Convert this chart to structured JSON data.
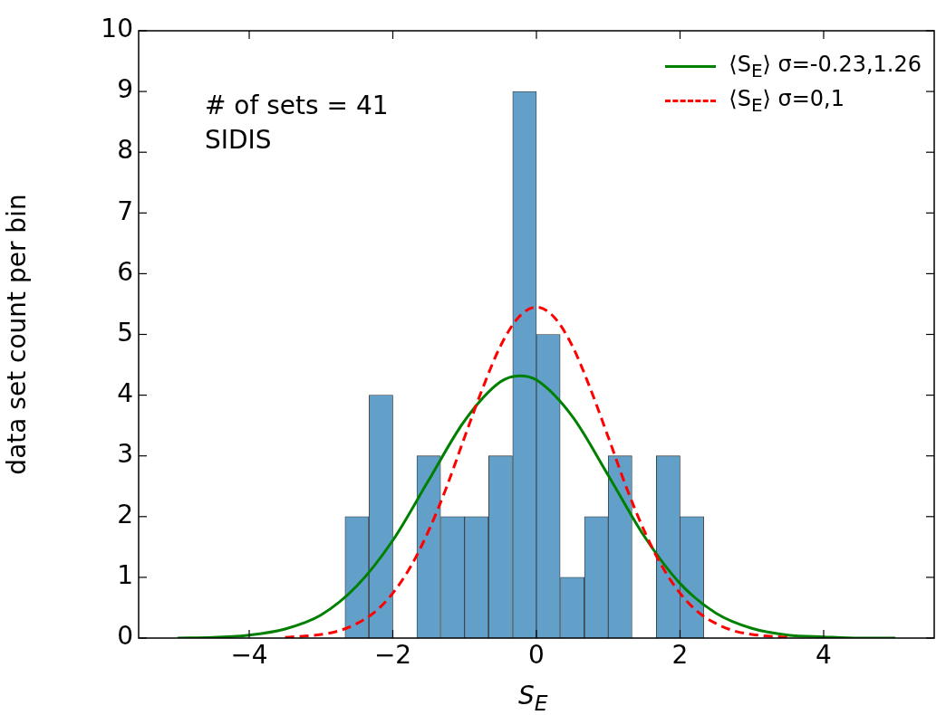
{
  "chart_data": {
    "type": "histogram",
    "xlabel": "S$_{E}$",
    "ylabel": "data set count per bin",
    "bins": [
      -2.67,
      -2.33,
      -2,
      -1.67,
      -1.33,
      -1,
      -0.67,
      -0.33,
      0,
      0.33,
      0.67,
      1,
      1.33,
      1.67,
      2,
      2.33
    ],
    "values": [
      2,
      4,
      0,
      3,
      2,
      2,
      3,
      9,
      5,
      1,
      2,
      3,
      0,
      3,
      2
    ],
    "color": "#62a0ca",
    "series": [
      {
        "type": "line",
        "name": "⟨S$_{E}$⟩ σ=-0.23,1.26",
        "color": "#008000",
        "line_style": "solid",
        "x": [
          -5,
          -4.5,
          -4,
          -3.5,
          -3,
          -2.5,
          -2,
          -1.5,
          -1,
          -0.5,
          -0.23,
          0,
          0.5,
          1,
          1.5,
          2,
          2.5,
          3,
          3.5,
          4,
          4.5,
          5
        ],
        "values": [
          0,
          0.01,
          0.05,
          0.15,
          0.38,
          0.86,
          1.61,
          2.6,
          3.58,
          4.22,
          4.32,
          4.25,
          3.65,
          2.68,
          1.68,
          0.9,
          0.41,
          0.16,
          0.05,
          0.02,
          0,
          0
        ]
      },
      {
        "type": "line",
        "name": "⟨S$_{E}$⟩ σ=0,1",
        "color": "#ff0000",
        "line_style": "dashed",
        "x": [
          -3.5,
          -3,
          -2.75,
          -2.5,
          -2.25,
          -2,
          -1.75,
          -1.5,
          -1.25,
          -1,
          -0.75,
          -0.5,
          -0.25,
          0,
          0.25,
          0.5,
          0.75,
          1,
          1.25,
          1.5,
          1.75,
          2,
          2.25,
          2.5,
          2.75,
          3,
          3.5
        ],
        "values": [
          0.01,
          0.06,
          0.12,
          0.24,
          0.43,
          0.74,
          1.18,
          1.77,
          2.49,
          3.31,
          4.11,
          4.81,
          5.28,
          5.45,
          5.28,
          4.81,
          4.11,
          3.31,
          2.49,
          1.77,
          1.18,
          0.74,
          0.43,
          0.24,
          0.12,
          0.06,
          0.01
        ]
      }
    ],
    "annotations": [
      "# of sets = 41",
      "SIDIS"
    ],
    "xlim": [
      -5.54,
      5.54
    ],
    "xticks": [
      {
        "value": -4,
        "label": "−4"
      },
      {
        "value": -2,
        "label": "−2"
      },
      0,
      2,
      4
    ],
    "ylim": [
      0,
      10
    ],
    "yticks": [
      0,
      1,
      2,
      3,
      4,
      5,
      6,
      7,
      8,
      9,
      10
    ],
    "legend": "top right",
    "grid": false
  }
}
